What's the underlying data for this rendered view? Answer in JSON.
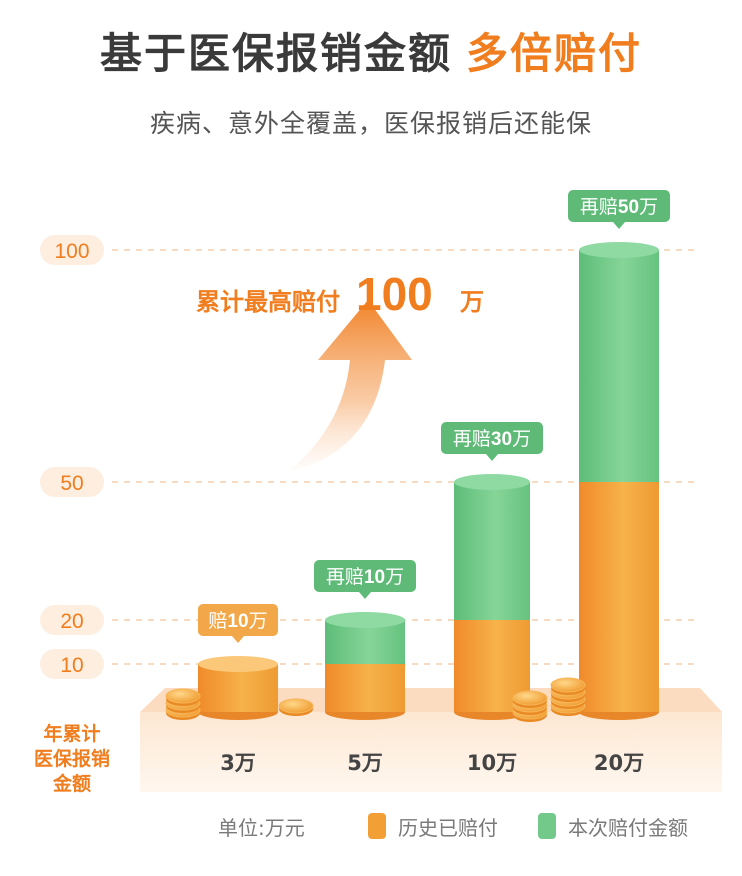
{
  "header": {
    "title_main": "基于医保报销金额",
    "title_accent": "多倍赔付",
    "subtitle": "疾病、意外全覆盖，医保报销后还能保"
  },
  "chart_data": {
    "type": "bar",
    "stacked": true,
    "title": "基于医保报销金额 多倍赔付",
    "ylabel": "年累计医保报销金额",
    "unit": "单位:万元",
    "y_ticks": [
      "100",
      "50",
      "20",
      "10"
    ],
    "y_tick_values": [
      100,
      50,
      20,
      10
    ],
    "categories": [
      "3万",
      "5万",
      "10万",
      "20万"
    ],
    "series": [
      {
        "name": "历史已赔付",
        "values": [
          10,
          10,
          20,
          50
        ],
        "color": "#f2a036"
      },
      {
        "name": "本次赔付金额",
        "values": [
          0,
          10,
          30,
          50
        ],
        "color": "#72c98a"
      }
    ],
    "data_labels": [
      {
        "prefix": "赔",
        "number": "10",
        "suffix": "万",
        "color": "#f2a748"
      },
      {
        "prefix": "再赔",
        "number": "10",
        "suffix": "万",
        "color": "#5fba78"
      },
      {
        "prefix": "再赔",
        "number": "30",
        "suffix": "万",
        "color": "#5fba78"
      },
      {
        "prefix": "再赔",
        "number": "50",
        "suffix": "万",
        "color": "#5fba78"
      }
    ],
    "annotation": {
      "text": "累计最高赔付",
      "number": "100",
      "suffix": "万"
    },
    "grid": true,
    "legend_position": "bottom"
  },
  "legend": {
    "unit": "单位:万元",
    "items": [
      {
        "label": "历史已赔付",
        "color": "#f2a036"
      },
      {
        "label": "本次赔付金额",
        "color": "#72c98a"
      }
    ]
  },
  "colors": {
    "orange": "#f07d1e",
    "green": "#72c98a",
    "axis_text": "#f07d1e",
    "platform": "#fdeee0"
  }
}
